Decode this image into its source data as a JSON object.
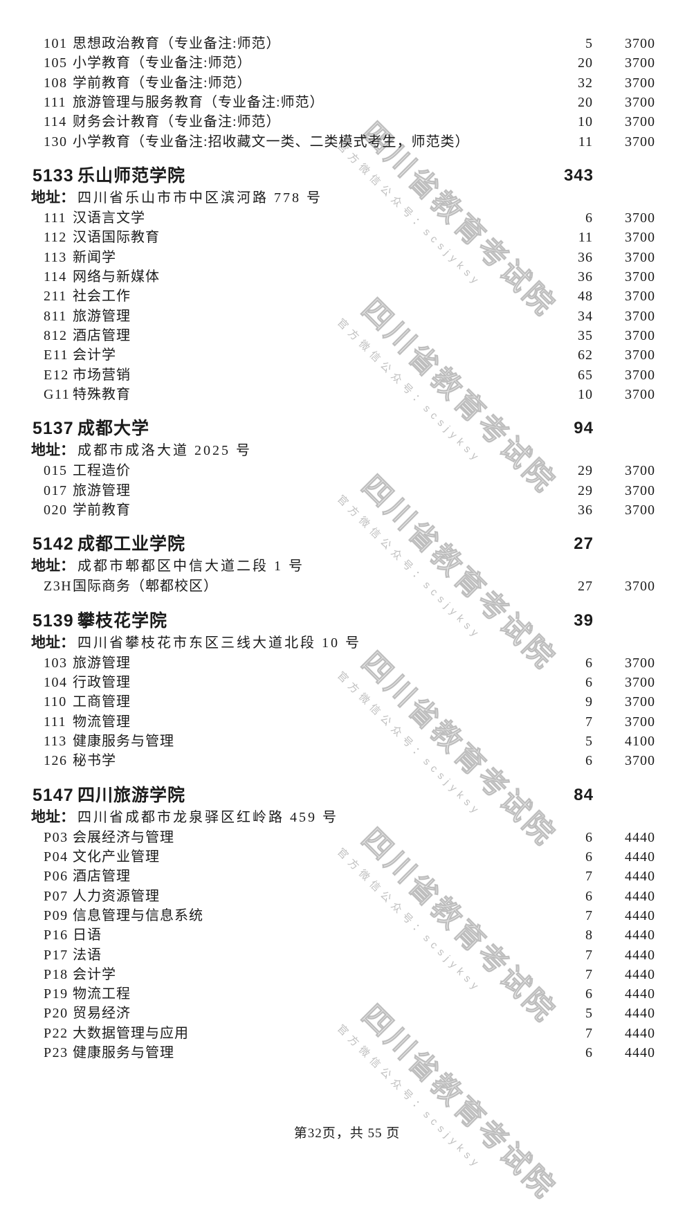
{
  "page": {
    "footer": "第32页，共 55 页"
  },
  "watermark": {
    "line1": "四川省教育考试院",
    "line2": "官方微信公众号：scsjyksy",
    "color": "#9e9e9e"
  },
  "leading_programs": [
    {
      "code": "101",
      "name": "思想政治教育（专业备注:师范）",
      "count": "5",
      "fee": "3700"
    },
    {
      "code": "105",
      "name": "小学教育（专业备注:师范）",
      "count": "20",
      "fee": "3700"
    },
    {
      "code": "108",
      "name": "学前教育（专业备注:师范）",
      "count": "32",
      "fee": "3700"
    },
    {
      "code": "111",
      "name": "旅游管理与服务教育（专业备注:师范）",
      "count": "20",
      "fee": "3700"
    },
    {
      "code": "114",
      "name": "财务会计教育（专业备注:师范）",
      "count": "10",
      "fee": "3700"
    },
    {
      "code": "130",
      "name": "小学教育（专业备注:招收藏文一类、二类模式考生，师范类）",
      "count": "11",
      "fee": "3700"
    }
  ],
  "sections": [
    {
      "code": "5133",
      "name": "乐山师范学院",
      "total": "343",
      "address_label": "地址：",
      "address": "四川省乐山市市中区滨河路 778 号",
      "programs": [
        {
          "code": "111",
          "name": "汉语言文学",
          "count": "6",
          "fee": "3700"
        },
        {
          "code": "112",
          "name": "汉语国际教育",
          "count": "11",
          "fee": "3700"
        },
        {
          "code": "113",
          "name": "新闻学",
          "count": "36",
          "fee": "3700"
        },
        {
          "code": "114",
          "name": "网络与新媒体",
          "count": "36",
          "fee": "3700"
        },
        {
          "code": "211",
          "name": "社会工作",
          "count": "48",
          "fee": "3700"
        },
        {
          "code": "811",
          "name": "旅游管理",
          "count": "34",
          "fee": "3700"
        },
        {
          "code": "812",
          "name": "酒店管理",
          "count": "35",
          "fee": "3700"
        },
        {
          "code": "E11",
          "name": "会计学",
          "count": "62",
          "fee": "3700"
        },
        {
          "code": "E12",
          "name": "市场营销",
          "count": "65",
          "fee": "3700"
        },
        {
          "code": "G11",
          "name": "特殊教育",
          "count": "10",
          "fee": "3700"
        }
      ]
    },
    {
      "code": "5137",
      "name": "成都大学",
      "total": "94",
      "address_label": "地址：",
      "address": "成都市成洛大道 2025 号",
      "programs": [
        {
          "code": "015",
          "name": "工程造价",
          "count": "29",
          "fee": "3700"
        },
        {
          "code": "017",
          "name": "旅游管理",
          "count": "29",
          "fee": "3700"
        },
        {
          "code": "020",
          "name": "学前教育",
          "count": "36",
          "fee": "3700"
        }
      ]
    },
    {
      "code": "5142",
      "name": "成都工业学院",
      "total": "27",
      "address_label": "地址：",
      "address": "成都市郫都区中信大道二段 1 号",
      "programs": [
        {
          "code": "Z3H",
          "name": "国际商务（郫都校区）",
          "count": "27",
          "fee": "3700"
        }
      ]
    },
    {
      "code": "5139",
      "name": "攀枝花学院",
      "total": "39",
      "address_label": "地址：",
      "address": "四川省攀枝花市东区三线大道北段 10 号",
      "programs": [
        {
          "code": "103",
          "name": "旅游管理",
          "count": "6",
          "fee": "3700"
        },
        {
          "code": "104",
          "name": "行政管理",
          "count": "6",
          "fee": "3700"
        },
        {
          "code": "110",
          "name": "工商管理",
          "count": "9",
          "fee": "3700"
        },
        {
          "code": "111",
          "name": "物流管理",
          "count": "7",
          "fee": "3700"
        },
        {
          "code": "113",
          "name": "健康服务与管理",
          "count": "5",
          "fee": "4100"
        },
        {
          "code": "126",
          "name": "秘书学",
          "count": "6",
          "fee": "3700"
        }
      ]
    },
    {
      "code": "5147",
      "name": "四川旅游学院",
      "total": "84",
      "address_label": "地址：",
      "address": "四川省成都市龙泉驿区红岭路 459 号",
      "programs": [
        {
          "code": "P03",
          "name": "会展经济与管理",
          "count": "6",
          "fee": "4440"
        },
        {
          "code": "P04",
          "name": "文化产业管理",
          "count": "6",
          "fee": "4440"
        },
        {
          "code": "P06",
          "name": "酒店管理",
          "count": "7",
          "fee": "4440"
        },
        {
          "code": "P07",
          "name": "人力资源管理",
          "count": "6",
          "fee": "4440"
        },
        {
          "code": "P09",
          "name": "信息管理与信息系统",
          "count": "7",
          "fee": "4440"
        },
        {
          "code": "P16",
          "name": "日语",
          "count": "8",
          "fee": "4440"
        },
        {
          "code": "P17",
          "name": "法语",
          "count": "7",
          "fee": "4440"
        },
        {
          "code": "P18",
          "name": "会计学",
          "count": "7",
          "fee": "4440"
        },
        {
          "code": "P19",
          "name": "物流工程",
          "count": "6",
          "fee": "4440"
        },
        {
          "code": "P20",
          "name": "贸易经济",
          "count": "5",
          "fee": "4440"
        },
        {
          "code": "P22",
          "name": "大数据管理与应用",
          "count": "7",
          "fee": "4440"
        },
        {
          "code": "P23",
          "name": "健康服务与管理",
          "count": "6",
          "fee": "4440"
        }
      ]
    }
  ]
}
